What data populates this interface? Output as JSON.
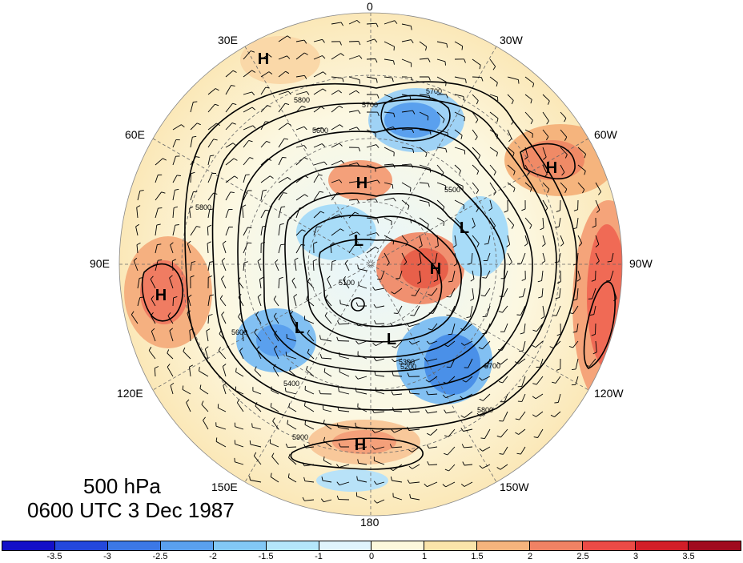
{
  "map": {
    "level": "500 hPa",
    "valid_time": "0600 UTC 3 Dec 1987",
    "longitude_labels": {
      "top": "0",
      "top_left": "30E",
      "top_right": "30W",
      "upper_left": "60E",
      "upper_right": "60W",
      "left": "90E",
      "right": "90W",
      "lower_left": "120E",
      "lower_right": "120W",
      "bottom_left": "150E",
      "bottom_right": "150W",
      "bottom": "180"
    },
    "centers": [
      {
        "label": "H",
        "name": "north-atlantic-high"
      },
      {
        "label": "H",
        "name": "europe-ridge-high"
      },
      {
        "label": "H",
        "name": "greenland-high"
      },
      {
        "label": "H",
        "name": "arctic-canada-high"
      },
      {
        "label": "H",
        "name": "central-asia-high"
      },
      {
        "label": "H",
        "name": "north-pacific-high"
      },
      {
        "label": "L",
        "name": "siberia-low"
      },
      {
        "label": "L",
        "name": "hudson-bay-low"
      },
      {
        "label": "L",
        "name": "east-asia-low"
      },
      {
        "label": "L",
        "name": "alaska-low"
      }
    ],
    "contour_labels": [
      "5800",
      "5700",
      "5600",
      "5500",
      "5400",
      "5300",
      "5200",
      "5100",
      "5900"
    ],
    "colorbar": {
      "ticks": [
        "-3.5",
        "-3",
        "-2.5",
        "-2",
        "-1.5",
        "-1",
        "0",
        "1",
        "1.5",
        "2",
        "2.5",
        "3",
        "3.5"
      ],
      "colors": [
        "#1410c8",
        "#2448dc",
        "#3c78e6",
        "#5aa0ee",
        "#82c8f5",
        "#b4e6fa",
        "#e0f4fc",
        "#fcf8dc",
        "#fae4aa",
        "#f5b47d",
        "#f08264",
        "#eb4b46",
        "#d21e28",
        "#a00a1e"
      ]
    }
  }
}
